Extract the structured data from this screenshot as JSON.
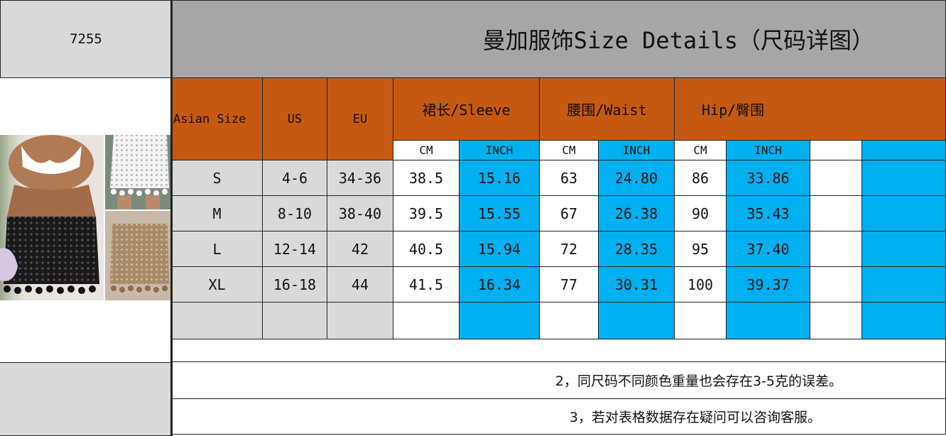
{
  "style_code": "7255",
  "title": "曼加服饰Size Details（尺码详图）",
  "columns": {
    "asian_size": "Asian Size",
    "us": "US",
    "eu": "EU",
    "length": "裙长/Sleeve",
    "waist": "腰围/Waist",
    "hip": "Hip/臀围",
    "cm": "CM",
    "inch": "INCH"
  },
  "rows": [
    {
      "size": "S",
      "us": "4-6",
      "eu": "34-36",
      "len_cm": "38.5",
      "len_in": "15.16",
      "waist_cm": "63",
      "waist_in": "24.80",
      "hip_cm": "86",
      "hip_in": "33.86"
    },
    {
      "size": "M",
      "us": "8-10",
      "eu": "38-40",
      "len_cm": "39.5",
      "len_in": "15.55",
      "waist_cm": "67",
      "waist_in": "26.38",
      "hip_cm": "90",
      "hip_in": "35.43"
    },
    {
      "size": "L",
      "us": "12-14",
      "eu": "42",
      "len_cm": "40.5",
      "len_in": "15.94",
      "waist_cm": "72",
      "waist_in": "28.35",
      "hip_cm": "95",
      "hip_in": "37.40"
    },
    {
      "size": "XL",
      "us": "16-18",
      "eu": "44",
      "len_cm": "41.5",
      "len_in": "16.34",
      "waist_cm": "77",
      "waist_in": "30.31",
      "hip_cm": "100",
      "hip_in": "39.37"
    }
  ],
  "notes": [
    "2，同尺码不同颜色重量也会存在3-5克的误差。",
    "3，若对表格数据存在疑问可以咨询客服。"
  ],
  "colors": {
    "header_gray": "#a6a6a6",
    "cell_gray": "#d9d9d9",
    "orange": "#c65911",
    "blue": "#00b0f0"
  }
}
